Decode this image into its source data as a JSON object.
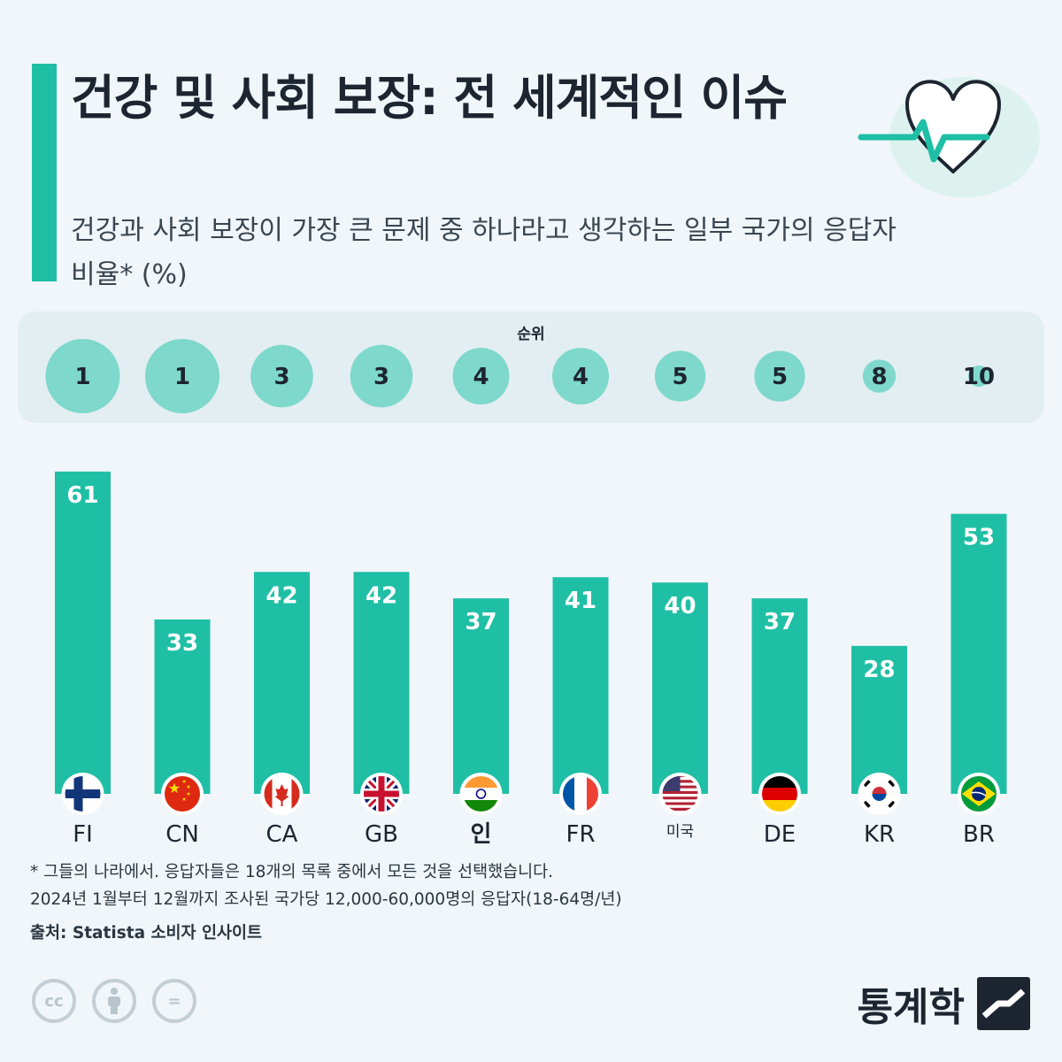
{
  "header": {
    "title": "건강 및 사회 보장: 전 세계적인 이슈",
    "subtitle": "건강과 사회 보장이 가장 큰 문제 중 하나라고 생각하는 일부 국가의 응답자 비율* (%)"
  },
  "icons": {
    "heart": "heart-pulse-icon",
    "cc": "creative-commons-icon",
    "by": "attribution-person-icon",
    "nd": "no-derivatives-icon",
    "brand": "statista-logo-icon"
  },
  "colors": {
    "accent": "#1fbfa5",
    "bar": "#1fbfa5",
    "rank_circle": "#7ed8cb",
    "text_dark": "#1c2530"
  },
  "chart_data": {
    "type": "bar",
    "categories": [
      "FI",
      "CN",
      "CA",
      "GB",
      "인",
      "FR",
      "미국",
      "DE",
      "KR",
      "BR"
    ],
    "values": [
      61,
      33,
      42,
      42,
      37,
      41,
      40,
      37,
      28,
      53
    ],
    "ranks": [
      1,
      1,
      3,
      3,
      4,
      4,
      5,
      5,
      8,
      10
    ],
    "rank_label": "순위",
    "flags": [
      "fi",
      "cn",
      "ca",
      "gb",
      "in",
      "fr",
      "us",
      "de",
      "kr",
      "br"
    ],
    "unit": "%",
    "ylim": [
      0,
      65
    ],
    "grid": false,
    "legend": "none"
  },
  "footer": {
    "footnote_1": "* 그들의 나라에서. 응답자들은 18개의 목록 중에서 모든 것을 선택했습니다.",
    "footnote_2": "2024년 1월부터 12월까지 조사된 국가당 12,000-60,000명의 응답자(18-64명/년)",
    "source": "출처: Statista 소비자 인사이트",
    "brand": "통계학",
    "cc_symbols": [
      "cc",
      "=",
      ""
    ]
  }
}
